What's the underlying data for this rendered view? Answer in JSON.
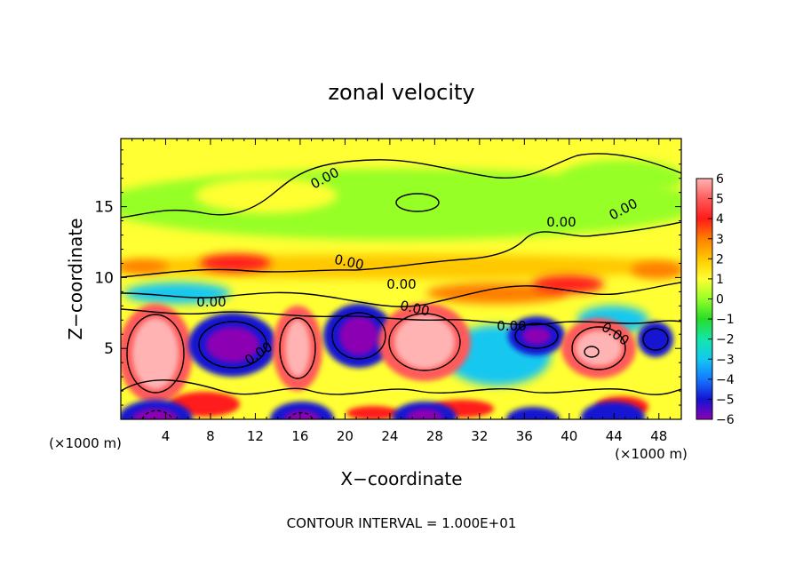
{
  "chart_data": {
    "type": "heatmap",
    "title": "zonal velocity",
    "xlabel": "X−coordinate",
    "ylabel": "Z−coordinate",
    "x_unit": "(×1000 m)",
    "x_unit_right": "(×1000 m)",
    "footnote": "CONTOUR INTERVAL = 1.000E+01",
    "x_ticks": [
      "4",
      "8",
      "12",
      "16",
      "20",
      "24",
      "28",
      "32",
      "36",
      "40",
      "44",
      "48"
    ],
    "x_tick_values": [
      4,
      8,
      12,
      16,
      20,
      24,
      28,
      32,
      36,
      40,
      44,
      48
    ],
    "y_ticks": [
      "5",
      "10",
      "15"
    ],
    "y_tick_values": [
      5,
      10,
      15
    ],
    "xlim": [
      0,
      50
    ],
    "ylim": [
      0,
      19.8
    ],
    "colorbar": {
      "labels": [
        "6",
        "5",
        "4",
        "3",
        "2",
        "1",
        "0",
        "−1",
        "−2",
        "−3",
        "−4",
        "−5",
        "−6"
      ],
      "values": [
        6,
        5,
        4,
        3,
        2,
        1,
        0,
        -1,
        -2,
        -3,
        -4,
        -5,
        -6
      ],
      "colors": [
        "#ffb3b3",
        "#ff5a5a",
        "#ff1a1a",
        "#ff7f00",
        "#ffc800",
        "#ffff33",
        "#96ff28",
        "#28dc28",
        "#14e6aa",
        "#14c8f0",
        "#1478ff",
        "#1414d2",
        "#8c00b4"
      ]
    },
    "contour_labels": [
      "0.00",
      "0.00",
      "0.00",
      "0.00",
      "0.00",
      "0.00",
      "0.00",
      "0.00",
      "0.00",
      "0.00"
    ],
    "background_value": 0.5
  }
}
